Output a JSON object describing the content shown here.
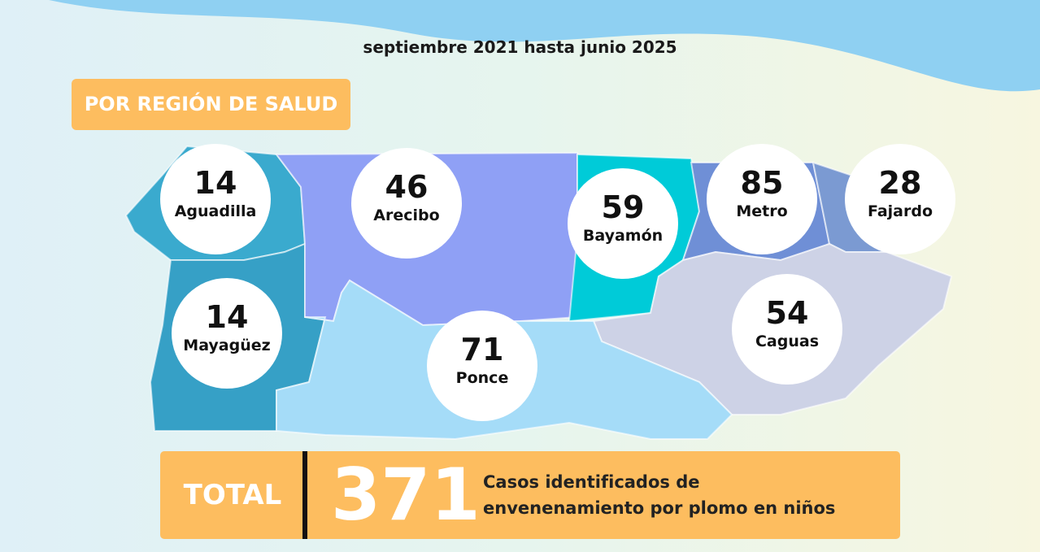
{
  "subtitle": "septiembre 2021 hasta junio 2025",
  "section_label": "POR REGIÓN DE SALUD",
  "regions": [
    {
      "name": "Aguadilla",
      "value": 14
    },
    {
      "name": "Arecibo",
      "value": 46
    },
    {
      "name": "Bayamón",
      "value": 59
    },
    {
      "name": "Metro",
      "value": 85
    },
    {
      "name": "Fajardo",
      "value": 28
    },
    {
      "name": "Mayagüez",
      "value": 14
    },
    {
      "name": "Ponce",
      "value": 71
    },
    {
      "name": "Caguas",
      "value": 54
    }
  ],
  "total": {
    "label": "TOTAL",
    "value": 371,
    "description": "Casos identificados de envenenamiento por plomo en niños"
  }
}
